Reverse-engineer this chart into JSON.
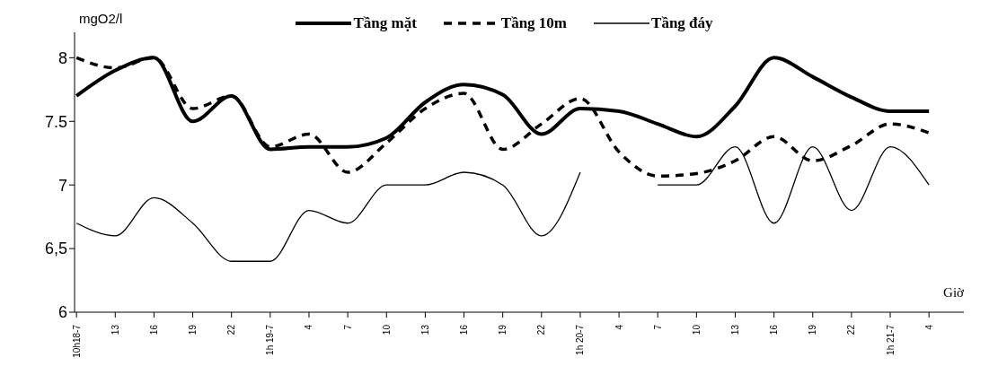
{
  "chart_data": {
    "type": "line",
    "xlabel": "Giờ",
    "ylabel": "mgO2/l",
    "categories": [
      "10h18-7",
      "13",
      "16",
      "19",
      "22",
      "1h 19-7",
      "4",
      "7",
      "10",
      "13",
      "16",
      "19",
      "22",
      "1h 20-7",
      "4",
      "7",
      "10",
      "13",
      "16",
      "19",
      "22",
      "1h 21-7",
      "4"
    ],
    "series": [
      {
        "name": "Tầng mặt",
        "color": "#000000",
        "line_style": "solid",
        "values": [
          7.7,
          7.9,
          8.0,
          7.5,
          7.7,
          7.28,
          7.3,
          7.3,
          7.37,
          7.65,
          7.79,
          7.71,
          7.4,
          7.6,
          7.58,
          7.48,
          7.38,
          7.62,
          8.0,
          7.85,
          7.69,
          7.58,
          7.58
        ]
      },
      {
        "name": "Tầng 10m",
        "color": "#000000",
        "line_style": "dashed",
        "values": [
          8.0,
          7.92,
          8.0,
          7.6,
          7.7,
          7.3,
          7.4,
          7.1,
          7.33,
          7.6,
          7.72,
          7.28,
          7.48,
          7.68,
          7.26,
          7.07,
          7.09,
          7.19,
          7.38,
          7.19,
          7.31,
          7.48,
          7.41
        ]
      },
      {
        "name": "Tầng đáy",
        "color": "#000000",
        "line_style": "solid",
        "values": [
          6.7,
          6.6,
          6.9,
          6.7,
          6.4,
          6.4,
          6.8,
          6.7,
          7.0,
          7.0,
          7.1,
          7.0,
          6.6,
          7.1,
          null,
          7.0,
          7.0,
          7.3,
          6.7,
          7.3,
          6.8,
          7.3,
          7.0
        ]
      }
    ],
    "ylim": [
      6,
      8.2
    ],
    "yticks": [
      6,
      {
        "value": 6.5,
        "label": "6,5"
      },
      7,
      {
        "value": 7.5,
        "label": "7.5"
      },
      8
    ],
    "grid": false,
    "legend": "top",
    "marker": "none"
  }
}
